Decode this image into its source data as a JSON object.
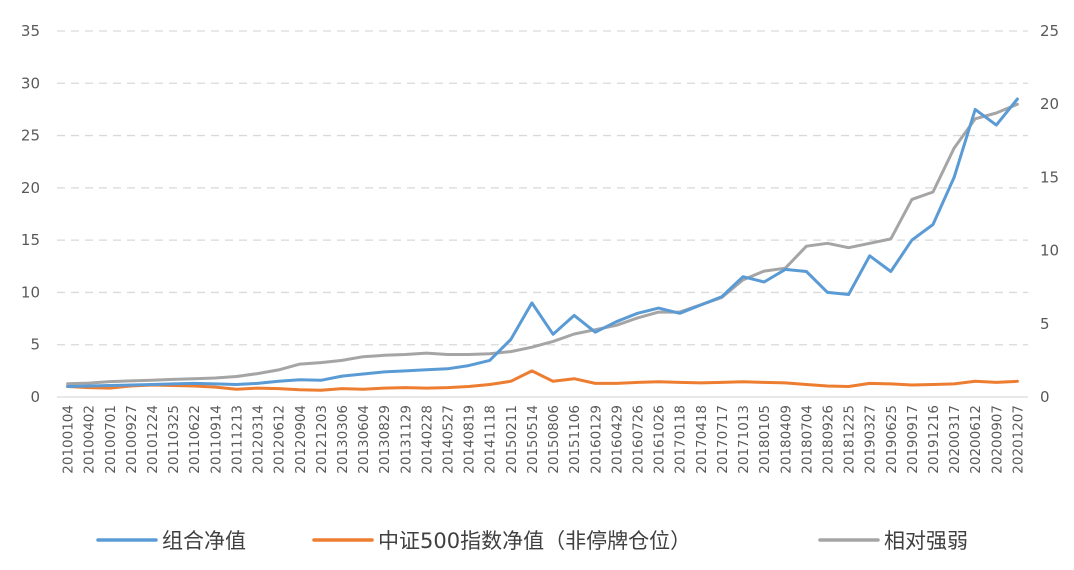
{
  "chart_data": {
    "type": "line",
    "title": "",
    "xlabel": "",
    "ylabel": "",
    "ylim_left": [
      0,
      35
    ],
    "ylim_right": [
      0,
      25
    ],
    "yticks_left": [
      "0",
      "5",
      "10",
      "15",
      "20",
      "25",
      "30",
      "35"
    ],
    "yticks_right": [
      "0",
      "5",
      "10",
      "15",
      "20",
      "25"
    ],
    "grid": "horizontal-dashed",
    "legend_position": "bottom",
    "categories": [
      "20100104",
      "20100402",
      "20100701",
      "20100927",
      "20101224",
      "20110325",
      "20110622",
      "20110914",
      "20111213",
      "20120314",
      "20120612",
      "20120904",
      "20121203",
      "20130306",
      "20130604",
      "20130829",
      "20131129",
      "20140228",
      "20140527",
      "20140819",
      "20141118",
      "20150211",
      "20150514",
      "20150806",
      "20151106",
      "20160129",
      "20160429",
      "20160726",
      "20161026",
      "20170118",
      "20170418",
      "20170717",
      "20171013",
      "20180105",
      "20180409",
      "20180704",
      "20180926",
      "20181225",
      "20190327",
      "20190625",
      "20190917",
      "20191216",
      "20200317",
      "20200612",
      "20200907",
      "20201207"
    ],
    "series": [
      {
        "name": "组合净值",
        "axis": "left",
        "color": "#5b9bd5",
        "values": [
          1.0,
          1.05,
          1.1,
          1.15,
          1.2,
          1.25,
          1.3,
          1.25,
          1.2,
          1.3,
          1.5,
          1.65,
          1.6,
          2.0,
          2.2,
          2.4,
          2.5,
          2.6,
          2.7,
          3.0,
          3.5,
          5.5,
          9.0,
          6.0,
          7.8,
          6.2,
          7.2,
          8.0,
          8.5,
          8.0,
          8.8,
          9.6,
          11.5,
          11.0,
          12.2,
          12.0,
          10.0,
          9.8,
          13.5,
          12.0,
          15.0,
          16.5,
          21.0,
          27.5,
          26.0,
          28.5
        ]
      },
      {
        "name": "中证500指数净值（非停牌仓位）",
        "axis": "left",
        "color": "#ed7d31",
        "values": [
          1.0,
          0.9,
          0.85,
          1.05,
          1.15,
          1.1,
          1.05,
          0.95,
          0.75,
          0.85,
          0.8,
          0.7,
          0.65,
          0.8,
          0.75,
          0.85,
          0.9,
          0.85,
          0.9,
          1.0,
          1.2,
          1.5,
          2.5,
          1.5,
          1.75,
          1.3,
          1.3,
          1.4,
          1.45,
          1.4,
          1.35,
          1.4,
          1.45,
          1.4,
          1.35,
          1.2,
          1.05,
          1.0,
          1.3,
          1.25,
          1.15,
          1.2,
          1.25,
          1.5,
          1.4,
          1.5
        ]
      },
      {
        "name": "相对强弱",
        "axis": "right",
        "color": "#a5a5a5",
        "values": [
          0.9,
          0.95,
          1.05,
          1.1,
          1.15,
          1.2,
          1.25,
          1.3,
          1.4,
          1.6,
          1.85,
          2.25,
          2.35,
          2.5,
          2.75,
          2.85,
          2.9,
          3.0,
          2.9,
          2.9,
          2.95,
          3.1,
          3.4,
          3.8,
          4.3,
          4.6,
          4.9,
          5.4,
          5.8,
          5.8,
          6.3,
          6.8,
          8.0,
          8.6,
          8.8,
          10.3,
          10.5,
          10.2,
          10.5,
          10.8,
          13.5,
          14.0,
          17.0,
          19.0,
          19.4,
          20.0
        ]
      }
    ]
  }
}
